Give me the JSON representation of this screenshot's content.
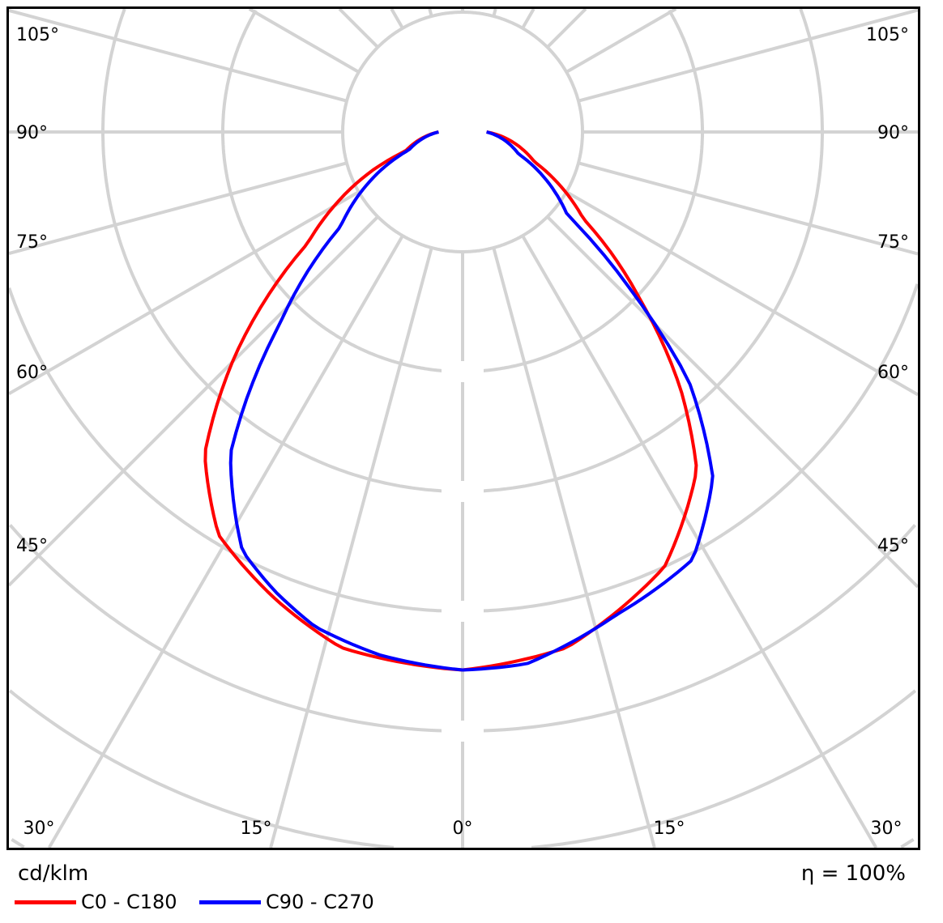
{
  "chart_data": {
    "type": "polar",
    "unit_label": "cd/klm",
    "efficiency_label": "η = 100%",
    "angle_labels_left": [
      "105°",
      "90°",
      "75°",
      "60°",
      "45°",
      "30°"
    ],
    "angle_labels_right": [
      "105°",
      "90°",
      "75°",
      "60°",
      "45°",
      "30°"
    ],
    "angle_labels_bottom": [
      "30°",
      "15°",
      "0°",
      "15°",
      "30°"
    ],
    "grid": true,
    "angle_step_deg": 15,
    "radial_tick_labels_shown": false,
    "radial_units": "ring divisions (scale values not printed)",
    "legend_placement": "bottom-left",
    "series": [
      {
        "name": "C0 - C180",
        "color": "#ff0000",
        "gamma": [
          -90,
          -71.6,
          -67,
          -54.3,
          -45.4,
          -38.7,
          -31.2,
          -21.8,
          -13.3,
          0,
          11.4,
          24.9,
          34.7,
          40.3,
          46.6,
          54.3,
          67.4,
          90
        ],
        "intensity": [
          0.2,
          0.5,
          0.81,
          1.59,
          2.67,
          3.44,
          3.93,
          4.2,
          4.42,
          4.49,
          4.39,
          4.0,
          3.43,
          2.81,
          2.04,
          1.24,
          0.65,
          0.2
        ]
      },
      {
        "name": "C90 - C270",
        "color": "#0000ff",
        "gamma": [
          -90,
          -71.6,
          -52.2,
          -43.6,
          -35.8,
          -27.7,
          -22.2,
          -16.5,
          -8.9,
          0,
          6.9,
          17.6,
          28.3,
          35.9,
          42.3,
          46.7,
          51.7,
          68.6,
          90
        ],
        "intensity": [
          0.2,
          0.47,
          1.29,
          2.21,
          3.31,
          3.95,
          4.14,
          4.31,
          4.42,
          4.49,
          4.47,
          4.23,
          4.05,
          3.56,
          2.8,
          1.94,
          1.11,
          0.5,
          0.2
        ]
      }
    ]
  }
}
